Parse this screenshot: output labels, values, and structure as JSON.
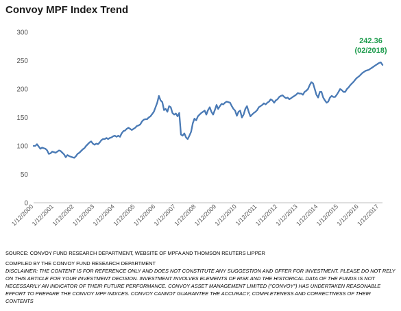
{
  "title": "Convoy MPF Index Trend",
  "chart_data": {
    "type": "line",
    "title": "Convoy MPF Index Trend",
    "xlabel": "",
    "ylabel": "",
    "ylim": [
      0,
      300
    ],
    "yticks": [
      0,
      50,
      100,
      150,
      200,
      250,
      300
    ],
    "grid": false,
    "legend": "none",
    "line_color": "#4a7ab5",
    "annotation_color": "#1a9a4a",
    "x_tick_labels": [
      "1/12/2000",
      "1/12/2001",
      "1/12/2002",
      "1/12/2003",
      "1/12/2004",
      "1/12/2005",
      "1/12/2006",
      "1/12/2007",
      "1/12/2008",
      "1/12/2009",
      "1/12/2010",
      "1/12/2011",
      "1/12/2012",
      "1/12/2013",
      "1/12/2014",
      "1/12/2015",
      "1/12/2016",
      "1/12/2017"
    ],
    "annotation": {
      "value_label": "242.36",
      "date_label": "(02/2018)"
    },
    "series": [
      {
        "points": [
          [
            "2000-12",
            100
          ],
          [
            "2001-01",
            100
          ],
          [
            "2001-02",
            103
          ],
          [
            "2001-03",
            99
          ],
          [
            "2001-04",
            95
          ],
          [
            "2001-05",
            97
          ],
          [
            "2001-06",
            96
          ],
          [
            "2001-07",
            95
          ],
          [
            "2001-08",
            92
          ],
          [
            "2001-09",
            86
          ],
          [
            "2001-10",
            87
          ],
          [
            "2001-11",
            90
          ],
          [
            "2001-12",
            89
          ],
          [
            "2002-01",
            88
          ],
          [
            "2002-02",
            90
          ],
          [
            "2002-03",
            92
          ],
          [
            "2002-04",
            91
          ],
          [
            "2002-05",
            88
          ],
          [
            "2002-06",
            85
          ],
          [
            "2002-07",
            80
          ],
          [
            "2002-08",
            84
          ],
          [
            "2002-09",
            82
          ],
          [
            "2002-10",
            81
          ],
          [
            "2002-11",
            80
          ],
          [
            "2002-12",
            79
          ],
          [
            "2003-01",
            82
          ],
          [
            "2003-02",
            86
          ],
          [
            "2003-03",
            88
          ],
          [
            "2003-04",
            91
          ],
          [
            "2003-05",
            94
          ],
          [
            "2003-06",
            96
          ],
          [
            "2003-07",
            100
          ],
          [
            "2003-08",
            103
          ],
          [
            "2003-09",
            106
          ],
          [
            "2003-10",
            108
          ],
          [
            "2003-11",
            104
          ],
          [
            "2003-12",
            102
          ],
          [
            "2004-01",
            104
          ],
          [
            "2004-02",
            103
          ],
          [
            "2004-03",
            106
          ],
          [
            "2004-04",
            110
          ],
          [
            "2004-05",
            112
          ],
          [
            "2004-06",
            112
          ],
          [
            "2004-07",
            114
          ],
          [
            "2004-08",
            112
          ],
          [
            "2004-09",
            114
          ],
          [
            "2004-10",
            115
          ],
          [
            "2004-11",
            117
          ],
          [
            "2004-12",
            118
          ],
          [
            "2005-01",
            116
          ],
          [
            "2005-02",
            118
          ],
          [
            "2005-03",
            116
          ],
          [
            "2005-04",
            122
          ],
          [
            "2005-05",
            126
          ],
          [
            "2005-06",
            127
          ],
          [
            "2005-07",
            130
          ],
          [
            "2005-08",
            132
          ],
          [
            "2005-09",
            130
          ],
          [
            "2005-10",
            128
          ],
          [
            "2005-11",
            130
          ],
          [
            "2005-12",
            132
          ],
          [
            "2006-01",
            135
          ],
          [
            "2006-02",
            136
          ],
          [
            "2006-03",
            138
          ],
          [
            "2006-04",
            143
          ],
          [
            "2006-05",
            146
          ],
          [
            "2006-06",
            147
          ],
          [
            "2006-07",
            147
          ],
          [
            "2006-08",
            150
          ],
          [
            "2006-09",
            152
          ],
          [
            "2006-10",
            156
          ],
          [
            "2006-11",
            160
          ],
          [
            "2006-12",
            168
          ],
          [
            "2007-01",
            176
          ],
          [
            "2007-02",
            188
          ],
          [
            "2007-03",
            180
          ],
          [
            "2007-04",
            177
          ],
          [
            "2007-05",
            163
          ],
          [
            "2007-06",
            165
          ],
          [
            "2007-07",
            160
          ],
          [
            "2007-08",
            170
          ],
          [
            "2007-09",
            168
          ],
          [
            "2007-10",
            158
          ],
          [
            "2007-11",
            155
          ],
          [
            "2007-12",
            157
          ],
          [
            "2008-01",
            152
          ],
          [
            "2008-02",
            158
          ],
          [
            "2008-03",
            120
          ],
          [
            "2008-04",
            118
          ],
          [
            "2008-05",
            122
          ],
          [
            "2008-06",
            115
          ],
          [
            "2008-07",
            112
          ],
          [
            "2008-08",
            118
          ],
          [
            "2008-09",
            125
          ],
          [
            "2008-10",
            140
          ],
          [
            "2008-11",
            148
          ],
          [
            "2008-12",
            145
          ],
          [
            "2009-01",
            152
          ],
          [
            "2009-02",
            155
          ],
          [
            "2009-03",
            158
          ],
          [
            "2009-04",
            160
          ],
          [
            "2009-05",
            162
          ],
          [
            "2009-06",
            155
          ],
          [
            "2009-07",
            163
          ],
          [
            "2009-08",
            168
          ],
          [
            "2009-09",
            160
          ],
          [
            "2009-10",
            155
          ],
          [
            "2009-11",
            163
          ],
          [
            "2009-12",
            172
          ],
          [
            "2010-01",
            165
          ],
          [
            "2010-02",
            170
          ],
          [
            "2010-03",
            174
          ],
          [
            "2010-04",
            173
          ],
          [
            "2010-05",
            176
          ],
          [
            "2010-06",
            178
          ],
          [
            "2010-07",
            177
          ],
          [
            "2010-08",
            176
          ],
          [
            "2010-09",
            170
          ],
          [
            "2010-10",
            165
          ],
          [
            "2010-11",
            162
          ],
          [
            "2010-12",
            153
          ],
          [
            "2011-01",
            160
          ],
          [
            "2011-02",
            162
          ],
          [
            "2011-03",
            150
          ],
          [
            "2011-04",
            155
          ],
          [
            "2011-05",
            165
          ],
          [
            "2011-06",
            170
          ],
          [
            "2011-07",
            160
          ],
          [
            "2011-08",
            152
          ],
          [
            "2011-09",
            155
          ],
          [
            "2011-10",
            158
          ],
          [
            "2011-11",
            160
          ],
          [
            "2011-12",
            163
          ],
          [
            "2012-01",
            168
          ],
          [
            "2012-02",
            170
          ],
          [
            "2012-03",
            172
          ],
          [
            "2012-04",
            175
          ],
          [
            "2012-05",
            173
          ],
          [
            "2012-06",
            176
          ],
          [
            "2012-07",
            178
          ],
          [
            "2012-08",
            182
          ],
          [
            "2012-09",
            180
          ],
          [
            "2012-10",
            176
          ],
          [
            "2012-11",
            180
          ],
          [
            "2012-12",
            182
          ],
          [
            "2013-01",
            186
          ],
          [
            "2013-02",
            188
          ],
          [
            "2013-03",
            189
          ],
          [
            "2013-04",
            186
          ],
          [
            "2013-05",
            184
          ],
          [
            "2013-06",
            185
          ],
          [
            "2013-07",
            182
          ],
          [
            "2013-08",
            184
          ],
          [
            "2013-09",
            186
          ],
          [
            "2013-10",
            188
          ],
          [
            "2013-11",
            190
          ],
          [
            "2013-12",
            193
          ],
          [
            "2014-01",
            192
          ],
          [
            "2014-02",
            192
          ],
          [
            "2014-03",
            190
          ],
          [
            "2014-04",
            195
          ],
          [
            "2014-05",
            197
          ],
          [
            "2014-06",
            200
          ],
          [
            "2014-07",
            207
          ],
          [
            "2014-08",
            212
          ],
          [
            "2014-09",
            210
          ],
          [
            "2014-10",
            200
          ],
          [
            "2014-11",
            190
          ],
          [
            "2014-12",
            185
          ],
          [
            "2015-01",
            195
          ],
          [
            "2015-02",
            195
          ],
          [
            "2015-03",
            185
          ],
          [
            "2015-04",
            180
          ],
          [
            "2015-05",
            176
          ],
          [
            "2015-06",
            178
          ],
          [
            "2015-07",
            185
          ],
          [
            "2015-08",
            188
          ],
          [
            "2015-09",
            186
          ],
          [
            "2015-10",
            186
          ],
          [
            "2015-11",
            190
          ],
          [
            "2015-12",
            195
          ],
          [
            "2016-01",
            200
          ],
          [
            "2016-02",
            198
          ],
          [
            "2016-03",
            195
          ],
          [
            "2016-04",
            195
          ],
          [
            "2016-05",
            200
          ],
          [
            "2016-06",
            203
          ],
          [
            "2016-07",
            207
          ],
          [
            "2016-08",
            210
          ],
          [
            "2016-09",
            213
          ],
          [
            "2016-10",
            217
          ],
          [
            "2016-11",
            220
          ],
          [
            "2016-12",
            222
          ],
          [
            "2017-01",
            225
          ],
          [
            "2017-02",
            228
          ],
          [
            "2017-03",
            230
          ],
          [
            "2017-04",
            232
          ],
          [
            "2017-05",
            233
          ],
          [
            "2017-06",
            234
          ],
          [
            "2017-07",
            236
          ],
          [
            "2017-08",
            238
          ],
          [
            "2017-09",
            240
          ],
          [
            "2017-10",
            242
          ],
          [
            "2017-11",
            244
          ],
          [
            "2017-12",
            246
          ],
          [
            "2018-01",
            247
          ],
          [
            "2018-02",
            242.36
          ]
        ]
      }
    ]
  },
  "footer": {
    "source": "SOURCE: CONVOY FUND RESEARCH DEPARTMENT, WEBSITE OF MPFA AND THOMSON REUTERS LIPPER",
    "compiled_by": "COMPILED BY THE CONVOY FUND RESEARCH DEPARTMENT",
    "disclaimer": "DISCLAIMER: THE CONTENT IS FOR REFERENCE ONLY AND DOES NOT CONSTITUTE ANY SUGGESTION AND OFFER FOR INVESTMENT. PLEASE DO NOT RELY ON THIS ARTICLE FOR YOUR INVESTMENT DECISION. INVESTMENT INVOLVES ELEMENTS OF RISK AND THE HISTORICAL DATA OF THE FUNDS IS NOT NECESSARILY AN INDICATOR OF THEIR FUTURE PERFORMANCE. CONVOY ASSET MANAGEMENT LIMITED (\"CONVOY\") HAS UNDERTAKEN REASONABLE EFFORT TO PREPARE THE CONVOY MPF INDICES. CONVOY CANNOT GUARANTEE THE ACCURACY, COMPLETENESS AND CORRECTNESS OF THEIR CONTENTS"
  }
}
